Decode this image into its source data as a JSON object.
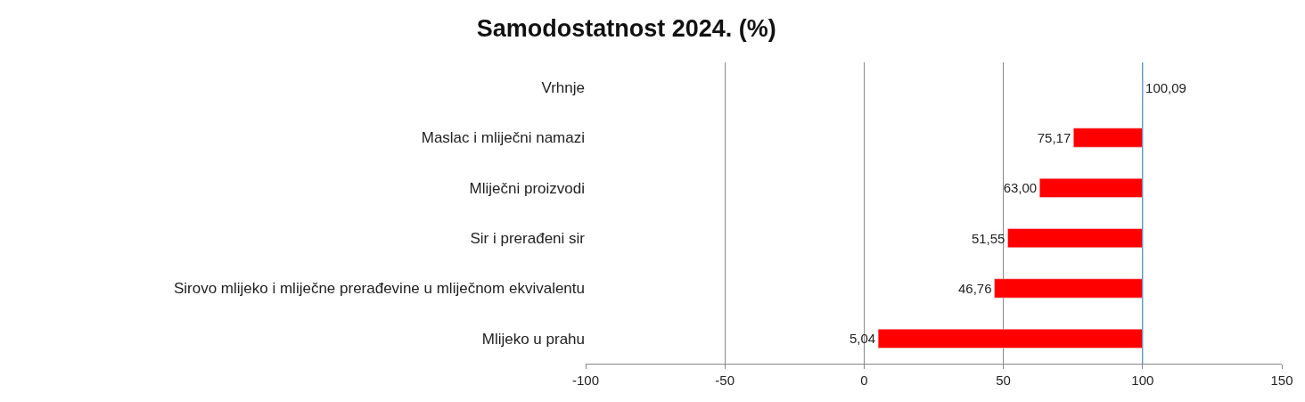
{
  "chart_data": {
    "type": "bar",
    "title": "Samodostatnost 2024. (%)",
    "orientation": "horizontal",
    "categories": [
      "Vrhnje",
      "Maslac i mliječni namazi",
      "Mliječni proizvodi",
      "Sir i prerađeni sir",
      "Sirovo mlijeko i mliječne prerađevine u mliječnom ekvivalentu",
      "Mlijeko u prahu"
    ],
    "base": [
      100,
      100,
      100,
      100,
      100,
      100
    ],
    "values": [
      0.09,
      -24.83,
      -37,
      -48.45,
      -53.24,
      -94.96
    ],
    "value_labels": [
      "100,09",
      "75,17",
      "63,00",
      "51,55",
      "46,76",
      "5,04"
    ],
    "color": "#ff0000",
    "xlim": [
      -100,
      150
    ],
    "xticks": [
      -100,
      -50,
      0,
      50,
      100,
      150
    ],
    "ref_lines": [
      {
        "axis": "x",
        "value": 100,
        "color": "#5b9bd5"
      }
    ],
    "grid": "x",
    "legend": false
  }
}
